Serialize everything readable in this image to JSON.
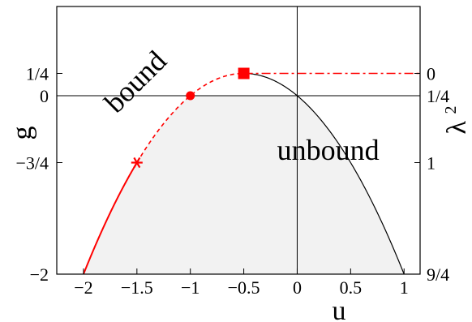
{
  "chart_data": {
    "type": "line",
    "xlabel": "u",
    "ylabel": "g",
    "ylabel_right": "λ",
    "ylabel_right_superscript": "2",
    "xlim": [
      -2.25,
      1.15
    ],
    "ylim": [
      -2.0,
      1.0
    ],
    "x_ticks": [
      {
        "value": -2.0,
        "label": "−2"
      },
      {
        "value": -1.5,
        "label": "−1.5"
      },
      {
        "value": -1.0,
        "label": "−1"
      },
      {
        "value": -0.5,
        "label": "−0.5"
      },
      {
        "value": 0.0,
        "label": "0"
      },
      {
        "value": 0.5,
        "label": "0.5"
      },
      {
        "value": 1.0,
        "label": "1"
      }
    ],
    "y_ticks_left": [
      {
        "value": 0.25,
        "label": "1/4"
      },
      {
        "value": 0.0,
        "label": "0"
      },
      {
        "value": -0.75,
        "label": "−3/4"
      },
      {
        "value": -2.0,
        "label": "−2"
      }
    ],
    "y_ticks_right": [
      {
        "value": 0.25,
        "label": "0"
      },
      {
        "value": 0.0,
        "label": "1/4"
      },
      {
        "value": -0.75,
        "label": "1"
      },
      {
        "value": -2.0,
        "label": "9/4"
      }
    ],
    "annotations": [
      {
        "text": "bound",
        "x": -1.45,
        "y": 0.08,
        "rotation": -45
      },
      {
        "text": "unbound",
        "x": 0.29,
        "y": -0.72,
        "rotation": 0
      }
    ],
    "curve": {
      "formula": "g = -u^2 - u",
      "x_range": [
        -2.0,
        1.0
      ],
      "segments": [
        {
          "style": "red-solid",
          "x_range": [
            -2.0,
            -1.5
          ]
        },
        {
          "style": "red-dashed",
          "x_range": [
            -1.5,
            -0.5
          ]
        },
        {
          "style": "black-solid",
          "x_range": [
            -0.5,
            1.0
          ]
        }
      ]
    },
    "horizontal_line": {
      "style": "red-dashdot",
      "y": 0.25,
      "x_range": [
        -0.5,
        1.15
      ]
    },
    "shaded_region": "below the curve g = -u^2 - u and below g = 0, light grey",
    "markers": [
      {
        "shape": "asterisk",
        "x": -1.5,
        "y": -0.75,
        "color": "#ff0000"
      },
      {
        "shape": "circle",
        "x": -1.0,
        "y": 0.0,
        "color": "#ff0000"
      },
      {
        "shape": "square",
        "x": -0.5,
        "y": 0.25,
        "color": "#ff0000"
      }
    ],
    "reference_lines": [
      {
        "axis": "x",
        "value": 0.0
      },
      {
        "axis": "y",
        "value": 0.0
      }
    ],
    "grid": false
  },
  "colors": {
    "accent_red": "#ff0000",
    "curve_black": "#000000",
    "shade_grey": "#f2f2f2"
  }
}
